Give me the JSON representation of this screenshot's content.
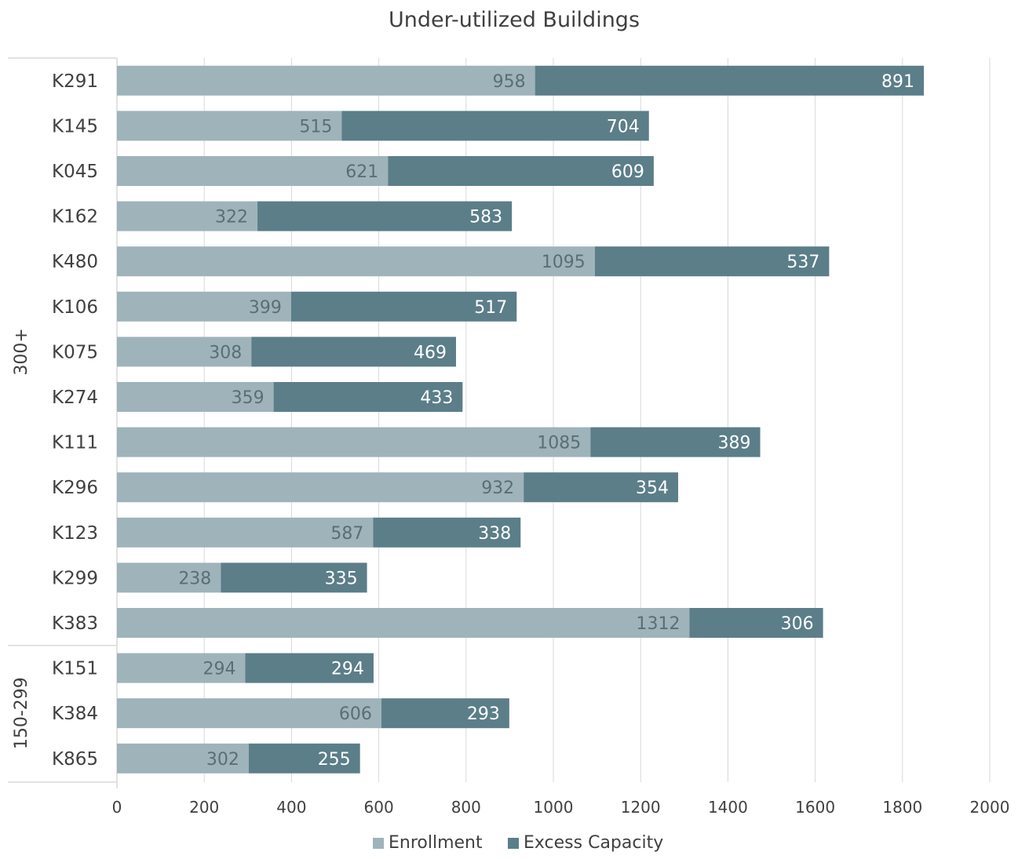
{
  "chart_data": {
    "type": "bar",
    "orientation": "horizontal",
    "stacked": true,
    "title": "Under-utilized Buildings",
    "xlabel": "",
    "ylabel": "",
    "xlim": [
      0,
      2000
    ],
    "x_ticks": [
      0,
      200,
      400,
      600,
      800,
      1000,
      1200,
      1400,
      1600,
      1800,
      2000
    ],
    "grid": true,
    "legend_position": "bottom",
    "categories": [
      "K291",
      "K145",
      "K045",
      "K162",
      "K480",
      "K106",
      "K075",
      "K274",
      "K111",
      "K296",
      "K123",
      "K299",
      "K383",
      "K151",
      "K384",
      "K865"
    ],
    "groups": [
      {
        "label": "300+",
        "categories": [
          "K291",
          "K145",
          "K045",
          "K162",
          "K480",
          "K106",
          "K075",
          "K274",
          "K111",
          "K296",
          "K123",
          "K299",
          "K383"
        ]
      },
      {
        "label": "150-299",
        "categories": [
          "K151",
          "K384",
          "K865"
        ]
      }
    ],
    "series": [
      {
        "name": "Enrollment",
        "color": "#9fb3ba",
        "values": [
          958,
          515,
          621,
          322,
          1095,
          399,
          308,
          359,
          1085,
          932,
          587,
          238,
          1312,
          294,
          606,
          302
        ]
      },
      {
        "name": "Excess Capacity",
        "color": "#5b7e89",
        "values": [
          891,
          704,
          609,
          583,
          537,
          517,
          469,
          433,
          389,
          354,
          338,
          335,
          306,
          294,
          293,
          255
        ]
      }
    ]
  }
}
